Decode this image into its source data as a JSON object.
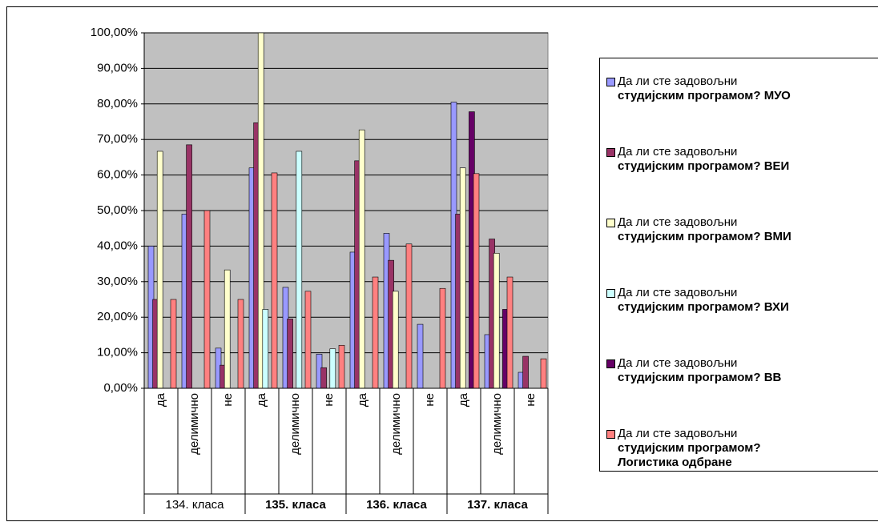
{
  "chart_data": {
    "type": "bar",
    "groups": [
      {
        "label": "134. класа",
        "bold": false,
        "categories": [
          "да",
          "делимично",
          "не"
        ]
      },
      {
        "label": "135. класа",
        "bold": true,
        "categories": [
          "да",
          "делимично",
          "не"
        ]
      },
      {
        "label": "136. класа",
        "bold": true,
        "categories": [
          "да",
          "делимично",
          "не"
        ]
      },
      {
        "label": "137. класа",
        "bold": true,
        "categories": [
          "да",
          "делимично",
          "не"
        ]
      }
    ],
    "series": [
      {
        "name": "Да ли сте задовољни\nстудијским програмом? МУО",
        "color": "#9999ff",
        "values": [
          40,
          49,
          11.3,
          62,
          28.4,
          9.6,
          38.3,
          43.6,
          18,
          80.5,
          15.1,
          4.5
        ]
      },
      {
        "name": "Да ли сте задовољни\nстудијским програмом? ВЕИ",
        "color": "#993366",
        "values": [
          25,
          68.5,
          6.5,
          74.7,
          19.5,
          5.8,
          64,
          36,
          0,
          49,
          42,
          9
        ]
      },
      {
        "name": "Да ли сте задовољни\nстудијским програмом? ВМИ",
        "color": "#ffffcc",
        "values": [
          66.67,
          0,
          33.3,
          100,
          0,
          0,
          72.7,
          27.3,
          0,
          62,
          38,
          0
        ]
      },
      {
        "name": "Да ли сте задовољни\nстудијским програмом? ВХИ",
        "color": "#ccffff",
        "values": [
          0,
          0,
          0,
          22.2,
          66.67,
          11.1,
          0,
          0,
          0,
          0,
          0,
          0
        ]
      },
      {
        "name": "Да ли сте задовољни\nстудијским програмом? ВВ",
        "color": "#660066",
        "values": [
          0,
          0,
          0,
          0,
          0,
          0,
          0,
          0,
          0,
          77.8,
          22.2,
          0
        ]
      },
      {
        "name": "Да ли сте задовољни\nстудијским програмом?\nЛогистика одбране",
        "color": "#ff8080",
        "values": [
          25,
          50,
          25,
          60.6,
          27.3,
          12.1,
          31.3,
          40.6,
          28.1,
          60.4,
          31.3,
          8.3
        ]
      }
    ],
    "ylim": [
      0,
      100
    ],
    "yticks": [
      {
        "value": 0,
        "label": "0,00%"
      },
      {
        "value": 10,
        "label": "10,00%"
      },
      {
        "value": 20,
        "label": "20,00%"
      },
      {
        "value": 30,
        "label": "30,00%"
      },
      {
        "value": 40,
        "label": "40,00%"
      },
      {
        "value": 50,
        "label": "50,00%"
      },
      {
        "value": 60,
        "label": "60,00%"
      },
      {
        "value": 70,
        "label": "70,00%"
      },
      {
        "value": 80,
        "label": "80,00%"
      },
      {
        "value": 90,
        "label": "90,00%"
      },
      {
        "value": 100,
        "label": "100,00%"
      }
    ],
    "grid": true,
    "plot_background": "#c0c0c0",
    "legend": "right"
  }
}
